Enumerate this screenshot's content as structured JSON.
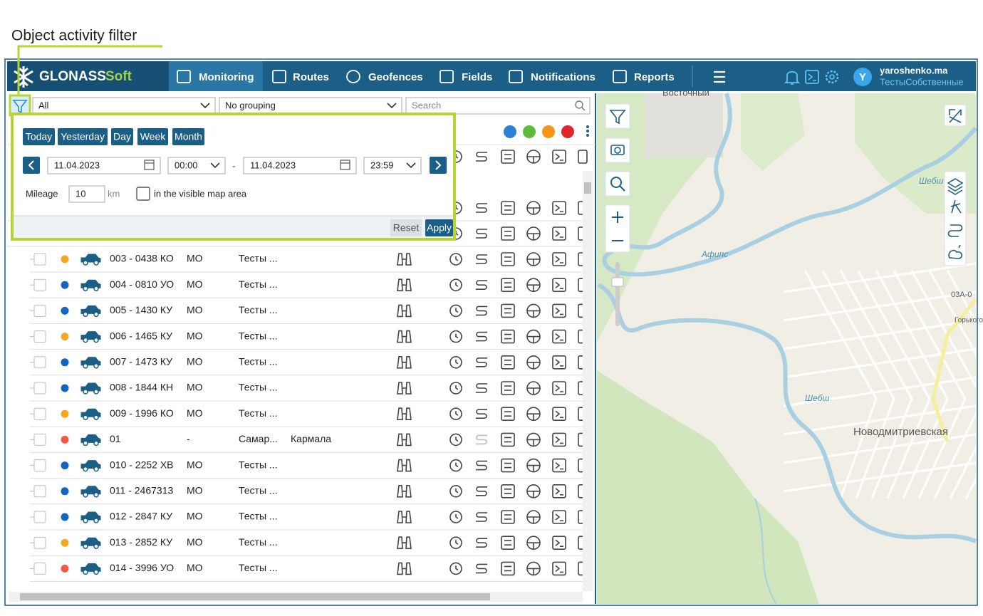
{
  "annotation": "Object activity filter",
  "header": {
    "logo_main": "GLONASS",
    "logo_accent": "Soft",
    "nav": [
      "Monitoring",
      "Routes",
      "Geofences",
      "Fields",
      "Notifications",
      "Reports"
    ],
    "avatar": "Y",
    "user": "yaroshenko.ma",
    "account": "ТестыСобственные"
  },
  "toolbar": {
    "filter": "All",
    "grouping": "No grouping",
    "search": "Search"
  },
  "popup": {
    "periods": [
      "Today",
      "Yesterday",
      "Day",
      "Week",
      "Month"
    ],
    "date_from": "11.04.2023",
    "time_from": "00:00",
    "separator": "-",
    "date_to": "11.04.2023",
    "time_to": "23:59",
    "mileage_label": "Mileage",
    "mileage_value": "10",
    "mileage_unit": "km",
    "visible_area": "in the visible map area",
    "reset": "Reset",
    "apply": "Apply"
  },
  "rows": [
    {
      "status_color": "#f5a623",
      "name": "003 - 0438 КО",
      "region": "МО",
      "group": "Тесты ..."
    },
    {
      "status_color": "#1565c0",
      "name": "004 - 0810 УО",
      "region": "МО",
      "group": "Тесты ..."
    },
    {
      "status_color": "#1565c0",
      "name": "005 - 1430 КУ",
      "region": "МО",
      "group": "Тесты ..."
    },
    {
      "status_color": "#f5a623",
      "name": "006 - 1465 КУ",
      "region": "МО",
      "group": "Тесты ..."
    },
    {
      "status_color": "#1565c0",
      "name": "007 - 1473 КУ",
      "region": "МО",
      "group": "Тесты ..."
    },
    {
      "status_color": "#1565c0",
      "name": "008 - 1844 КН",
      "region": "МО",
      "group": "Тесты ..."
    },
    {
      "status_color": "#f5a623",
      "name": "009 - 1996 КО",
      "region": "МО",
      "group": "Тесты ..."
    },
    {
      "status_color": "#ef5b45",
      "name": "01",
      "region": "-",
      "group": "Самар...",
      "place": "Кармала"
    },
    {
      "status_color": "#1565c0",
      "name": "010 - 2252 ХВ",
      "region": "МО",
      "group": "Тесты ..."
    },
    {
      "status_color": "#1565c0",
      "name": "011 - 2467313",
      "region": "МО",
      "group": "Тесты ..."
    },
    {
      "status_color": "#1565c0",
      "name": "012 - 2847 КУ",
      "region": "МО",
      "group": "Тесты ..."
    },
    {
      "status_color": "#f5a623",
      "name": "013 - 2852 КУ",
      "region": "МО",
      "group": "Тесты ..."
    },
    {
      "status_color": "#ef5b45",
      "name": "014 - 3996 УО",
      "region": "МО",
      "group": "Тесты ..."
    }
  ],
  "map": {
    "labels": [
      "Восточный",
      "Афипс",
      "Шебш",
      "Новодмитриевская",
      "03А-0",
      "Горького",
      "Шебш"
    ]
  }
}
